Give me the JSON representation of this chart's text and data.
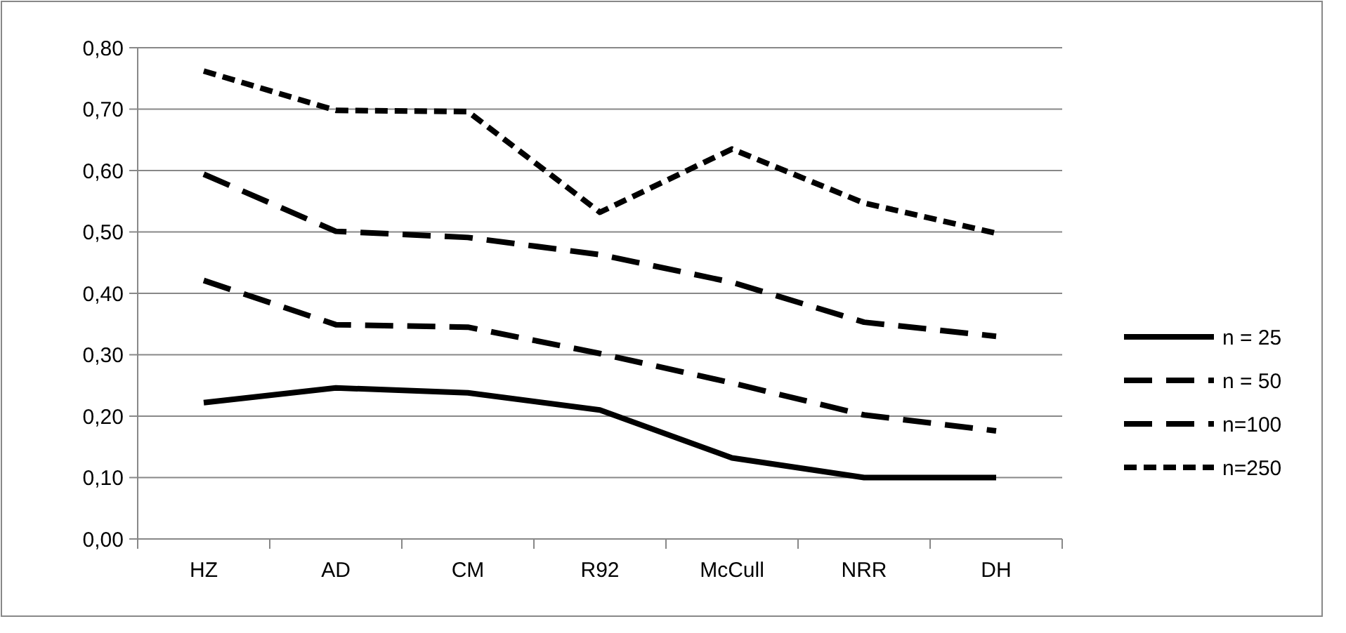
{
  "chart_data": {
    "type": "line",
    "categories": [
      "HZ",
      "AD",
      "CM",
      "R92",
      "McCull",
      "NRR",
      "DH"
    ],
    "series": [
      {
        "name": "n = 25",
        "color": "#000000",
        "line_style": "solid",
        "values": [
          0.222,
          0.246,
          0.238,
          0.21,
          0.132,
          0.1,
          0.1
        ]
      },
      {
        "name": "n = 50",
        "color": "#000000",
        "line_style": "dashed",
        "values": [
          0.421,
          0.349,
          0.345,
          0.302,
          0.254,
          0.202,
          0.176
        ]
      },
      {
        "name": "n=100",
        "color": "#000000",
        "line_style": "dashed",
        "values": [
          0.594,
          0.501,
          0.491,
          0.463,
          0.418,
          0.353,
          0.33
        ]
      },
      {
        "name": "n=250",
        "color": "#000000",
        "line_style": "dotted",
        "values": [
          0.762,
          0.698,
          0.696,
          0.532,
          0.635,
          0.547,
          0.498
        ]
      }
    ],
    "ylim": [
      0,
      0.8
    ],
    "yticks": [
      {
        "value": 0,
        "label": "0,00"
      },
      {
        "value": 0.1,
        "label": "0,10"
      },
      {
        "value": 0.2,
        "label": "0,20"
      },
      {
        "value": 0.3,
        "label": "0,30"
      },
      {
        "value": 0.4,
        "label": "0,40"
      },
      {
        "value": 0.5,
        "label": "0,50"
      },
      {
        "value": 0.6,
        "label": "0,60"
      },
      {
        "value": 0.7,
        "label": "0,70"
      },
      {
        "value": 0.8,
        "label": "0,80"
      }
    ],
    "grid": "y",
    "legend": "right"
  }
}
